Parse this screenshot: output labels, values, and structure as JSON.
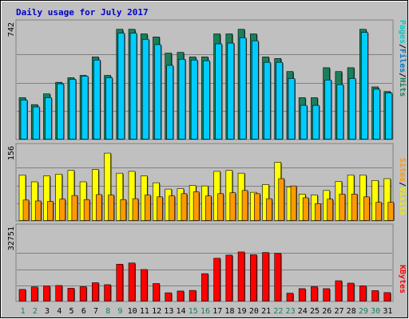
{
  "chart_data": {
    "type": "bar",
    "title": "Daily usage for July 2017",
    "categories": [
      "1",
      "2",
      "3",
      "4",
      "5",
      "6",
      "7",
      "8",
      "9",
      "10",
      "11",
      "12",
      "13",
      "14",
      "15",
      "16",
      "17",
      "18",
      "19",
      "20",
      "21",
      "22",
      "23",
      "24",
      "25",
      "26",
      "27",
      "28",
      "29",
      "30",
      "31"
    ],
    "weekend_days": [
      "1",
      "2",
      "8",
      "9",
      "15",
      "16",
      "22",
      "23",
      "29",
      "30"
    ],
    "panels": [
      {
        "id": "hits",
        "ymax_label": "742",
        "ymax": 742,
        "right_labels": [
          "Pages",
          "/",
          "Files",
          "/",
          "Hits"
        ],
        "series": [
          {
            "name": "Hits",
            "color": "#1a7f5a",
            "values": [
              270,
              225,
              295,
              370,
              400,
              415,
              535,
              415,
              715,
              715,
              685,
              665,
              560,
              565,
              535,
              535,
              685,
              685,
              715,
              685,
              535,
              525,
              440,
              270,
              270,
              465,
              440,
              465,
              715,
              340,
              310
            ]
          },
          {
            "name": "Files",
            "color": "#00ccff",
            "values": [
              255,
              210,
              270,
              360,
              390,
              410,
              515,
              400,
              690,
              690,
              650,
              615,
              480,
              520,
              515,
              510,
              620,
              625,
              660,
              640,
              500,
              500,
              395,
              220,
              220,
              385,
              355,
              395,
              695,
              325,
              300
            ]
          },
          {
            "name": "Pages",
            "color": "#00ccff",
            "values": [
              0,
              0,
              0,
              0,
              0,
              0,
              0,
              0,
              0,
              0,
              0,
              0,
              0,
              0,
              0,
              0,
              0,
              0,
              0,
              0,
              0,
              0,
              0,
              0,
              0,
              0,
              0,
              0,
              0,
              0,
              0
            ]
          }
        ]
      },
      {
        "id": "visits",
        "ymax_label": "156",
        "ymax": 156,
        "right_labels": [
          "Sites",
          "/",
          "Visits"
        ],
        "series": [
          {
            "name": "Visits",
            "color": "#ffff00",
            "values": [
              100,
              85,
              98,
              102,
              110,
              85,
              112,
              148,
              104,
              108,
              98,
              83,
              69,
              70,
              77,
              76,
              108,
              110,
              104,
              62,
              79,
              128,
              74,
              58,
              56,
              66,
              86,
              100,
              100,
              88,
              92
            ]
          },
          {
            "name": "Sites",
            "color": "#ff9900",
            "values": [
              45,
              43,
              42,
              47,
              55,
              46,
              57,
              56,
              46,
              48,
              56,
              52,
              54,
              59,
              63,
              54,
              59,
              61,
              66,
              59,
              48,
              92,
              76,
              50,
              37,
              47,
              58,
              58,
              52,
              40,
              40
            ]
          }
        ]
      },
      {
        "id": "kbytes",
        "ymax_label": "32751",
        "ymax": 32751,
        "right_labels": [
          "KBytes"
        ],
        "series": [
          {
            "name": "KBytes",
            "color": "#ff0000",
            "values": [
              5900,
              7200,
              7600,
              7900,
              6500,
              7300,
              9300,
              8300,
              18700,
              19300,
              16000,
              8900,
              4200,
              5100,
              5400,
              13900,
              21700,
              23300,
              24900,
              23500,
              24600,
              24200,
              4000,
              6300,
              7300,
              6300,
              10300,
              9100,
              7700,
              5300,
              4300
            ]
          }
        ]
      }
    ]
  }
}
